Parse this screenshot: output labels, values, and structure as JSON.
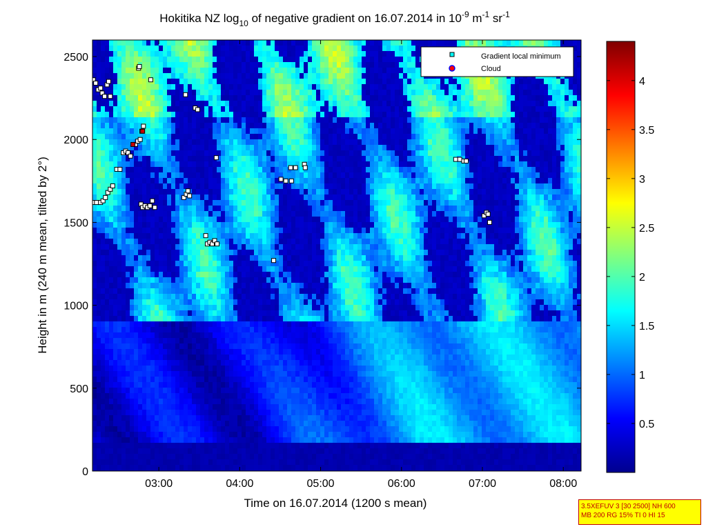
{
  "chart_data": {
    "type": "heatmap",
    "title_parts": {
      "station": "Hokitika NZ log",
      "log_sub": "10",
      "middle": " of negative gradient on 16.07.2014 in 10",
      "exp1": "-9",
      "unit1": " m",
      "exp2": "-1",
      "unit2": " sr",
      "exp3": "-1"
    },
    "xlabel": "Time on 16.07.2014 (1200 s mean)",
    "ylabel": "Height in m (240 m mean, tilted by 2°)",
    "x_range_hours": [
      2.18,
      8.22
    ],
    "y_range_m": [
      0,
      2600
    ],
    "x_ticks": [
      {
        "hour": 3,
        "label": "03:00"
      },
      {
        "hour": 4,
        "label": "04:00"
      },
      {
        "hour": 5,
        "label": "05:00"
      },
      {
        "hour": 6,
        "label": "06:00"
      },
      {
        "hour": 7,
        "label": "07:00"
      },
      {
        "hour": 8,
        "label": "08:00"
      }
    ],
    "y_ticks": [
      {
        "value": 0,
        "label": "0"
      },
      {
        "value": 500,
        "label": "500"
      },
      {
        "value": 1000,
        "label": "1000"
      },
      {
        "value": 1500,
        "label": "1500"
      },
      {
        "value": 2000,
        "label": "2000"
      },
      {
        "value": 2500,
        "label": "2500"
      }
    ],
    "colorbar": {
      "range": [
        0,
        4.4
      ],
      "colormap": "jet",
      "ticks": [
        {
          "value": 0.5,
          "label": "0.5"
        },
        {
          "value": 1,
          "label": "1"
        },
        {
          "value": 1.5,
          "label": "1.5"
        },
        {
          "value": 2,
          "label": "2"
        },
        {
          "value": 2.5,
          "label": "2.5"
        },
        {
          "value": 3,
          "label": "3"
        },
        {
          "value": 3.5,
          "label": "3.5"
        },
        {
          "value": 4,
          "label": "4"
        }
      ]
    },
    "legend": {
      "placement": "top-right",
      "entries": [
        {
          "label": "Gradient local minimum",
          "marker": "square",
          "color": "#00ffff"
        },
        {
          "label": "Cloud",
          "marker": "circle",
          "color": "#ff0000",
          "edge": "#0000ff"
        }
      ]
    },
    "gradient_minima": [
      [
        2.19,
        2360
      ],
      [
        2.22,
        2340
      ],
      [
        2.25,
        2300
      ],
      [
        2.28,
        2310
      ],
      [
        2.3,
        2280
      ],
      [
        2.33,
        2260
      ],
      [
        2.36,
        2330
      ],
      [
        2.38,
        2350
      ],
      [
        2.4,
        2260
      ],
      [
        2.19,
        1620
      ],
      [
        2.23,
        1620
      ],
      [
        2.28,
        1620
      ],
      [
        2.31,
        1630
      ],
      [
        2.34,
        1650
      ],
      [
        2.37,
        1680
      ],
      [
        2.4,
        1700
      ],
      [
        2.43,
        1720
      ],
      [
        2.48,
        1820
      ],
      [
        2.52,
        1820
      ],
      [
        2.56,
        1920
      ],
      [
        2.59,
        1930
      ],
      [
        2.62,
        1920
      ],
      [
        2.65,
        1900
      ],
      [
        2.71,
        1970
      ],
      [
        2.74,
        1990
      ],
      [
        2.77,
        2000
      ],
      [
        2.79,
        2050
      ],
      [
        2.81,
        2080
      ],
      [
        2.75,
        2430
      ],
      [
        2.76,
        2440
      ],
      [
        2.9,
        2360
      ],
      [
        2.78,
        1610
      ],
      [
        2.8,
        1590
      ],
      [
        2.83,
        1600
      ],
      [
        2.86,
        1590
      ],
      [
        2.89,
        1600
      ],
      [
        2.92,
        1630
      ],
      [
        2.95,
        1590
      ],
      [
        3.31,
        1650
      ],
      [
        3.34,
        1670
      ],
      [
        3.36,
        1690
      ],
      [
        3.38,
        1660
      ],
      [
        3.33,
        2270
      ],
      [
        3.45,
        2190
      ],
      [
        3.48,
        2180
      ],
      [
        3.71,
        1890
      ],
      [
        3.58,
        1420
      ],
      [
        3.6,
        1370
      ],
      [
        3.63,
        1380
      ],
      [
        3.66,
        1370
      ],
      [
        3.69,
        1390
      ],
      [
        3.72,
        1370
      ],
      [
        4.42,
        1270
      ],
      [
        4.51,
        1760
      ],
      [
        4.57,
        1750
      ],
      [
        4.63,
        1830
      ],
      [
        4.64,
        1750
      ],
      [
        4.69,
        1830
      ],
      [
        4.8,
        1850
      ],
      [
        4.81,
        1830
      ],
      [
        6.67,
        1880
      ],
      [
        6.72,
        1880
      ],
      [
        6.77,
        1870
      ],
      [
        6.8,
        1870
      ],
      [
        7.02,
        1540
      ],
      [
        7.05,
        1560
      ],
      [
        7.07,
        1550
      ],
      [
        7.09,
        1500
      ]
    ],
    "cloud_points": [
      [
        2.8,
        2050
      ],
      [
        2.68,
        1970
      ]
    ]
  },
  "info_box": {
    "line1": "3.5XEFUV 3 [30 2500] NH 600",
    "line2": "MB 200 RG 15% TI 0 HI 15"
  }
}
